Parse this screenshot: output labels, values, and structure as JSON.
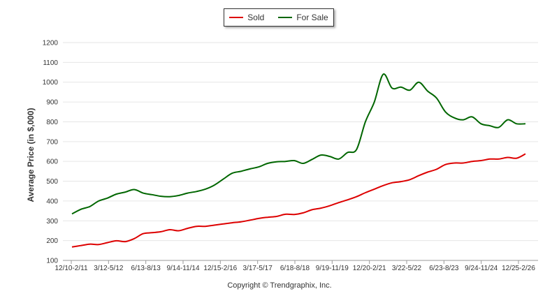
{
  "chart_data": {
    "type": "line",
    "ylabel": "Average Price (in $,000)",
    "ylim": [
      100,
      1200
    ],
    "yticks": [
      100,
      200,
      300,
      400,
      500,
      600,
      700,
      800,
      900,
      1000,
      1100,
      1200
    ],
    "x_tick_labels": [
      "12/10-2/11",
      "3/12-5/12",
      "6/13-8/13",
      "9/14-11/14",
      "12/15-2/16",
      "3/17-5/17",
      "6/18-8/18",
      "9/19-11/19",
      "12/20-2/21",
      "3/22-5/22",
      "6/23-8/23",
      "9/24-11/24",
      "12/25-2/26"
    ],
    "legend": [
      {
        "name": "Sold",
        "color": "#dd0000"
      },
      {
        "name": "For Sale",
        "color": "#006600"
      }
    ],
    "series": [
      {
        "name": "Sold",
        "color": "#dd0000",
        "values": [
          168,
          175,
          182,
          180,
          190,
          199,
          195,
          210,
          235,
          240,
          245,
          255,
          250,
          262,
          272,
          272,
          278,
          284,
          290,
          295,
          303,
          312,
          318,
          322,
          333,
          332,
          340,
          356,
          364,
          376,
          392,
          406,
          422,
          442,
          460,
          478,
          492,
          498,
          508,
          528,
          546,
          560,
          584,
          592,
          592,
          600,
          604,
          612,
          612,
          620,
          616,
          638
        ]
      },
      {
        "name": "For Sale",
        "color": "#006600",
        "values": [
          335,
          358,
          372,
          400,
          415,
          435,
          445,
          458,
          440,
          432,
          424,
          422,
          428,
          440,
          448,
          460,
          480,
          510,
          540,
          550,
          562,
          572,
          590,
          598,
          600,
          604,
          590,
          610,
          632,
          625,
          612,
          645,
          660,
          800,
          900,
          1040,
          970,
          975,
          960,
          1000,
          955,
          920,
          850,
          820,
          810,
          825,
          790,
          780,
          772,
          810,
          790,
          790
        ]
      }
    ]
  },
  "copyright": "Copyright © Trendgraphix, Inc."
}
